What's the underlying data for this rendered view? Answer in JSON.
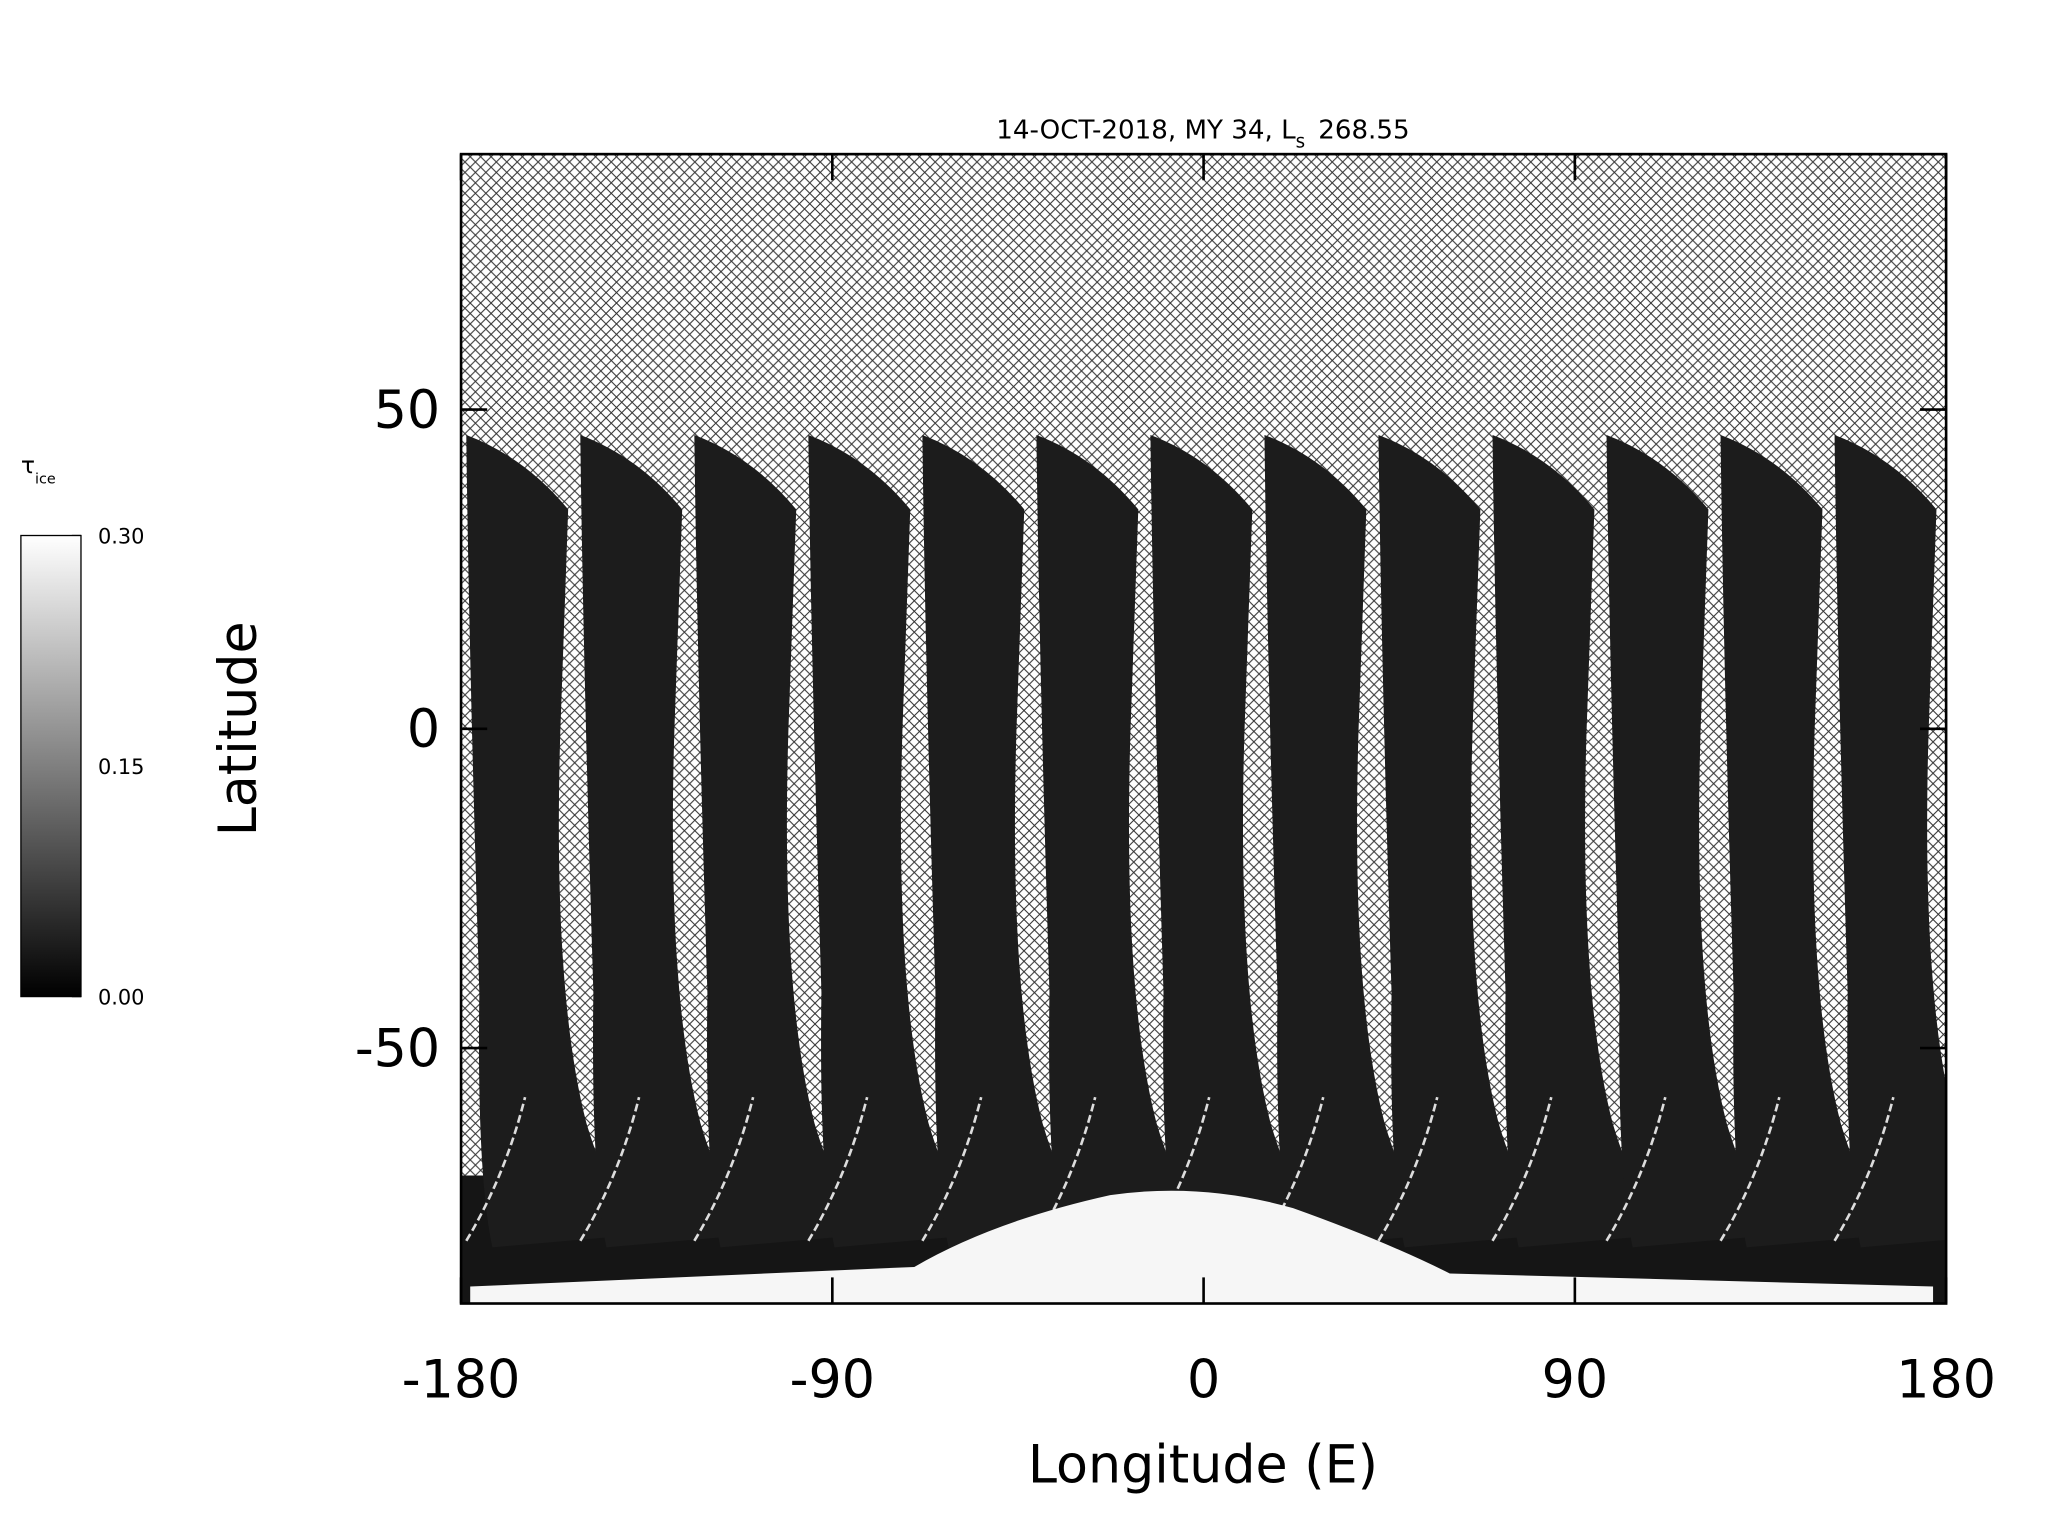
{
  "chart_data": {
    "type": "map",
    "title": "14-OCT-2018, MY 34,  L",
    "title_subscript": "s",
    "title_suffix": "268.55",
    "x_label": "Longitude (E)",
    "y_label": "Latitude",
    "xlim": [
      -180,
      180
    ],
    "xticks": [
      -180,
      -90,
      0,
      90,
      180
    ],
    "ylim": [
      -90,
      90
    ],
    "yticks": [
      -50,
      0,
      50
    ],
    "colorbar": {
      "label": "τ",
      "label_subscript": "ice",
      "lim": [
        0,
        0.3
      ],
      "ticks": [
        {
          "value": 0,
          "label": "0.00"
        },
        {
          "value": 0.15,
          "label": "0.15"
        },
        {
          "value": 0.3,
          "label": "0.30"
        }
      ]
    }
  }
}
